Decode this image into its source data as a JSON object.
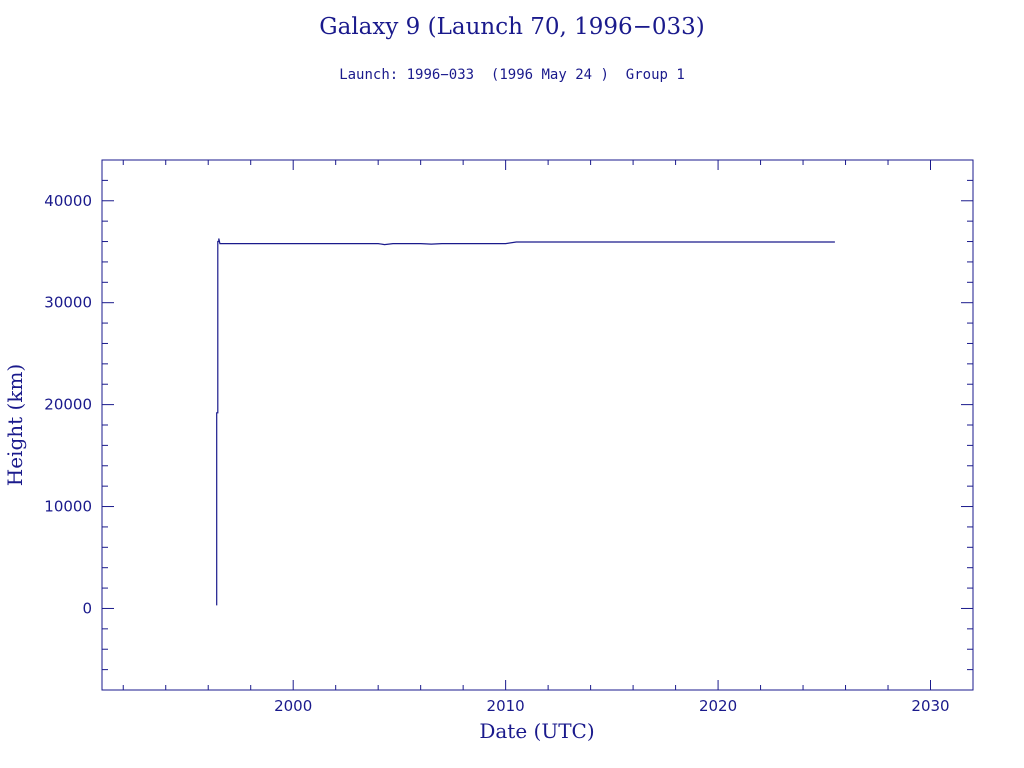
{
  "chart_data": {
    "type": "line",
    "title": "Galaxy 9 (Launch 70, 1996−033)",
    "subtitle": "Launch: 1996−033  (1996 May 24 )  Group 1",
    "xlabel": "Date (UTC)",
    "ylabel": "Height (km)",
    "xlim": [
      1991,
      2032
    ],
    "ylim": [
      -8000,
      44000
    ],
    "x_ticks": [
      2000,
      2010,
      2020,
      2030
    ],
    "y_ticks": [
      0,
      10000,
      20000,
      30000,
      40000
    ],
    "grid": false,
    "series": [
      {
        "color": "#1a1a8c",
        "x": [
          1996.4,
          1996.4,
          1996.45,
          1996.45,
          1996.5,
          1996.5,
          1996.55,
          1996.6,
          1997.5,
          2000.0,
          2002.0,
          2004.0,
          2004.3,
          2004.7,
          2006.0,
          2006.5,
          2007.0,
          2008.0,
          2010.0,
          2010.5,
          2011.0,
          2015.0,
          2020.0,
          2025.5
        ],
        "y": [
          300,
          19200,
          19200,
          36000,
          36000,
          36300,
          35800,
          35800,
          35800,
          35800,
          35800,
          35800,
          35700,
          35800,
          35800,
          35750,
          35800,
          35800,
          35800,
          35950,
          35950,
          35950,
          35950,
          35950
        ]
      }
    ]
  },
  "colors": {
    "ink": "#1a1a8c",
    "background": "#ffffff"
  }
}
